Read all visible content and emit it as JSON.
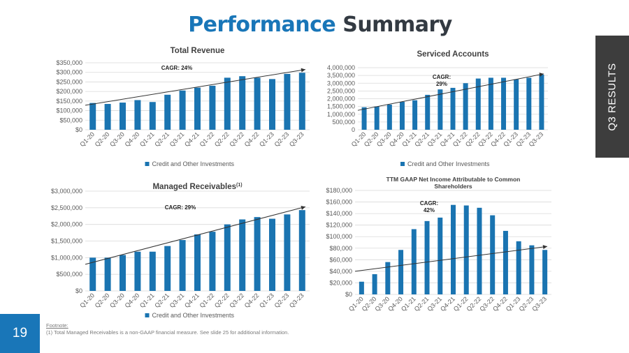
{
  "page": {
    "title_part1": "Performance",
    "title_part2": "Summary",
    "side_tab": "Q3 RESULTS",
    "page_number": "19",
    "footnote_label": "Footnote:",
    "footnote_text": "(1) Total Managed Receivables is a non-GAAP financial measure. See slide 25 for additional information."
  },
  "colors": {
    "bar": "#1a74b1",
    "title_blue": "#1976b8",
    "title_dark": "#333a42",
    "grid": "#d9d9d9",
    "text": "#595959"
  },
  "chart_data": [
    {
      "id": "revenue",
      "type": "bar",
      "title": "Total Revenue",
      "title_sup": "",
      "categories": [
        "Q1-20",
        "Q2-20",
        "Q3-20",
        "Q4-20",
        "Q1-21",
        "Q2-21",
        "Q3-21",
        "Q4-21",
        "Q1-22",
        "Q2-22",
        "Q3-22",
        "Q4-22",
        "Q1-23",
        "Q2-23",
        "Q3-23"
      ],
      "series": [
        {
          "name": "Credit and Other Investments",
          "values": [
            140000,
            135000,
            142000,
            155000,
            145000,
            183000,
            205000,
            220000,
            230000,
            272000,
            280000,
            272000,
            265000,
            292000,
            298000
          ]
        }
      ],
      "ylim": [
        0,
        350000
      ],
      "yticks": [
        0,
        50000,
        100000,
        150000,
        200000,
        250000,
        300000,
        350000
      ],
      "ytick_labels": [
        "$0",
        "$50,000",
        "$100,000",
        "$150,000",
        "$200,000",
        "$250,000",
        "$300,000",
        "$350,000"
      ],
      "trend": [
        128000,
        315000
      ],
      "annotation": [
        "CAGR: 24%"
      ],
      "grid": true,
      "legend": "bottom"
    },
    {
      "id": "accounts",
      "type": "bar",
      "title": "Serviced Accounts",
      "title_sup": "",
      "categories": [
        "Q1-20",
        "Q2-20",
        "Q3-20",
        "Q4-20",
        "Q1-21",
        "Q2-21",
        "Q3-21",
        "Q4-21",
        "Q1-22",
        "Q2-22",
        "Q3-22",
        "Q4-22",
        "Q1-23",
        "Q2-23",
        "Q3-23"
      ],
      "series": [
        {
          "name": "Credit and Other Investments",
          "values": [
            1450000,
            1500000,
            1620000,
            1800000,
            1900000,
            2250000,
            2600000,
            2700000,
            3000000,
            3300000,
            3350000,
            3350000,
            3250000,
            3350000,
            3550000
          ]
        }
      ],
      "ylim": [
        0,
        4000000
      ],
      "yticks": [
        0,
        500000,
        1000000,
        1500000,
        2000000,
        2500000,
        3000000,
        3500000,
        4000000
      ],
      "ytick_labels": [
        "0",
        "500,000",
        "1,000,000",
        "1,500,000",
        "2,000,000",
        "2,500,000",
        "3,000,000",
        "3,500,000",
        "4,000,000"
      ],
      "trend": [
        1250000,
        3600000
      ],
      "annotation": [
        "CAGR:",
        "29%"
      ],
      "grid": true,
      "legend": "bottom"
    },
    {
      "id": "receivables",
      "type": "bar",
      "title": "Managed Receivables",
      "title_sup": "(1)",
      "categories": [
        "Q1-20",
        "Q2-20",
        "Q3-20",
        "Q4-20",
        "Q1-21",
        "Q2-21",
        "Q3-21",
        "Q4-21",
        "Q1-22",
        "Q2-22",
        "Q3-22",
        "Q4-22",
        "Q1-23",
        "Q2-23",
        "Q3-23"
      ],
      "series": [
        {
          "name": "Credit and Other Investments",
          "values": [
            1000000,
            1000000,
            1080000,
            1180000,
            1180000,
            1350000,
            1530000,
            1700000,
            1780000,
            2000000,
            2150000,
            2220000,
            2170000,
            2300000,
            2430000
          ]
        }
      ],
      "ylim": [
        0,
        3000000
      ],
      "yticks": [
        0,
        500000,
        1000000,
        1500000,
        2000000,
        2500000,
        3000000
      ],
      "ytick_labels": [
        "$0",
        "$500,000",
        "$1,000,000",
        "$1,500,000",
        "$2,000,000",
        "$2,500,000",
        "$3,000,000"
      ],
      "trend": [
        800000,
        2530000
      ],
      "annotation": [
        "CAGR: 29%"
      ],
      "grid": true,
      "legend": "bottom"
    },
    {
      "id": "netincome",
      "type": "bar",
      "title_lines": [
        "TTM GAAP Net Income Attributable to Common",
        "Shareholders"
      ],
      "title_sup": "",
      "categories": [
        "Q1-20",
        "Q2-20",
        "Q3-20",
        "Q4-20",
        "Q1-21",
        "Q2-21",
        "Q3-21",
        "Q4-21",
        "Q1-22",
        "Q2-22",
        "Q3-22",
        "Q4-22",
        "Q1-23",
        "Q2-23",
        "Q3-23"
      ],
      "series": [
        {
          "name": "",
          "values": [
            22000,
            35000,
            56000,
            77000,
            113000,
            127000,
            133000,
            155000,
            154000,
            150000,
            137000,
            110000,
            92000,
            85000,
            77000
          ]
        }
      ],
      "ylim": [
        0,
        180000
      ],
      "yticks": [
        0,
        20000,
        40000,
        60000,
        80000,
        100000,
        120000,
        140000,
        160000,
        180000
      ],
      "ytick_labels": [
        "$0",
        "$20,000",
        "$40,000",
        "$60,000",
        "$80,000",
        "$100,000",
        "$120,000",
        "$140,000",
        "$160,000",
        "$180,000"
      ],
      "trend": [
        40000,
        83000
      ],
      "annotation": [
        "CAGR:",
        "42%"
      ],
      "grid": true,
      "legend": "none"
    }
  ]
}
